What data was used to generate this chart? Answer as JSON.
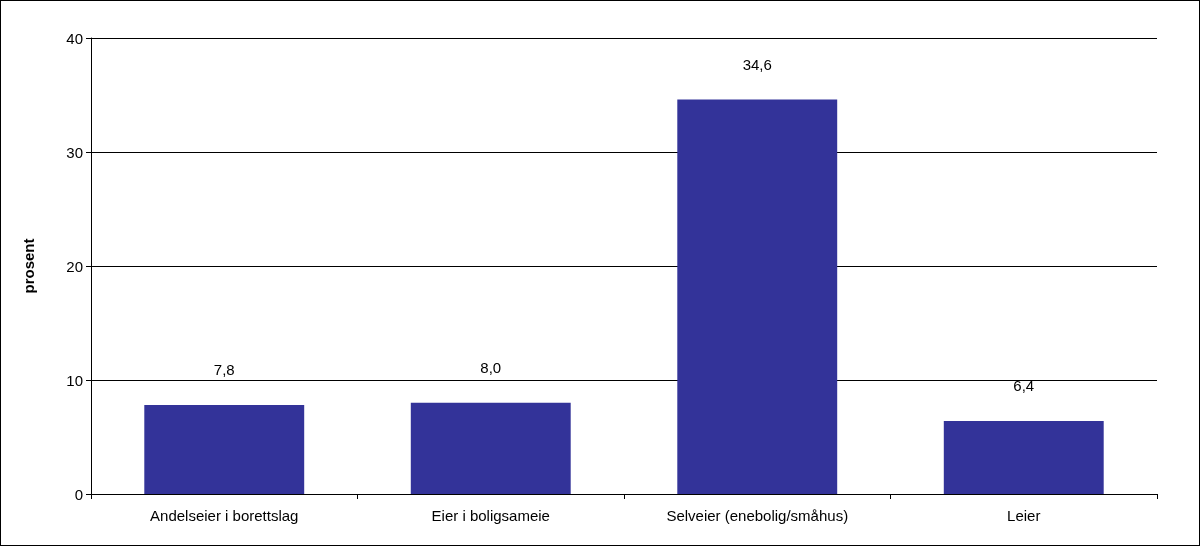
{
  "chart_data": {
    "type": "bar",
    "ylabel": "prosent",
    "categories": [
      "Andelseier i borettslag",
      "Eier i boligsameie",
      "Selveier (enebolig/småhus)",
      "Leier"
    ],
    "values": [
      7.8,
      8.0,
      34.6,
      6.4
    ],
    "value_labels": [
      "7,8",
      "8,0",
      "34,6",
      "6,4"
    ],
    "color": "#333399",
    "ylim": [
      0,
      40
    ],
    "yticks": [
      0,
      10,
      20,
      30,
      40
    ],
    "grid": "y"
  }
}
